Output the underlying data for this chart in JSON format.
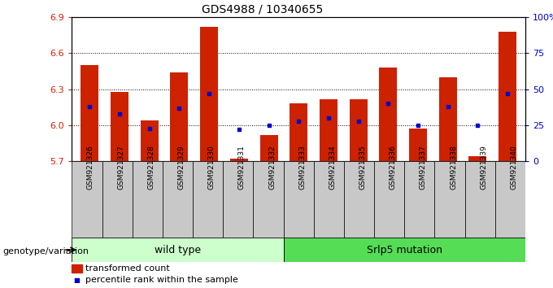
{
  "title": "GDS4988 / 10340655",
  "samples": [
    "GSM921326",
    "GSM921327",
    "GSM921328",
    "GSM921329",
    "GSM921330",
    "GSM921331",
    "GSM921332",
    "GSM921333",
    "GSM921334",
    "GSM921335",
    "GSM921336",
    "GSM921337",
    "GSM921338",
    "GSM921339",
    "GSM921340"
  ],
  "red_values": [
    6.5,
    6.28,
    6.04,
    6.44,
    6.82,
    5.72,
    5.92,
    6.18,
    6.22,
    6.22,
    6.48,
    5.97,
    6.4,
    5.74,
    6.78
  ],
  "blue_values": [
    38,
    33,
    23,
    37,
    47,
    22,
    25,
    28,
    30,
    28,
    40,
    25,
    38,
    25,
    47
  ],
  "ymin": 5.7,
  "ymax": 6.9,
  "yticks": [
    5.7,
    6.0,
    6.3,
    6.6,
    6.9
  ],
  "right_yticks": [
    0,
    25,
    50,
    75,
    100
  ],
  "right_yticklabels": [
    "0",
    "25",
    "50",
    "75",
    "100%"
  ],
  "wild_type_count": 7,
  "mutation_count": 8,
  "wild_type_label": "wild type",
  "mutation_label": "Srlp5 mutation",
  "genotype_label": "genotype/variation",
  "legend_red": "transformed count",
  "legend_blue": "percentile rank within the sample",
  "bar_color": "#cc2200",
  "dot_color": "#0000cc",
  "wild_type_bg": "#ccffcc",
  "mutation_bg": "#55dd55",
  "tick_box_color": "#c8c8c8",
  "bar_width": 0.6
}
